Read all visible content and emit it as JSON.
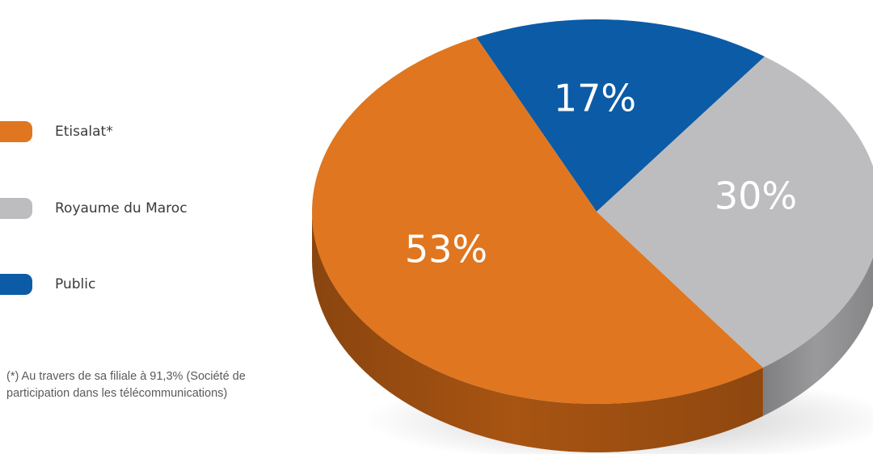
{
  "legend": {
    "items": [
      {
        "label": "Etisalat*",
        "color": "#E0761F"
      },
      {
        "label": "Royaume du Maroc",
        "color": "#BDBDBF"
      },
      {
        "label": "Public",
        "color": "#0C5BA6"
      }
    ]
  },
  "footnote": {
    "line1": "(*) Au travers de sa filiale à 91,3% (Société de",
    "line2": "participation dans les télécommunications)"
  },
  "chart_data": {
    "type": "pie",
    "title": "",
    "slices": [
      {
        "label": "Etisalat*",
        "value": 53,
        "display": "53%",
        "color": "#E0761F",
        "side_color": "#A85412",
        "text_color": "#ffffff"
      },
      {
        "label": "Royaume du Maroc",
        "value": 30,
        "display": "30%",
        "color": "#BDBDBF",
        "side_color": "#9A9A9C",
        "text_color": "#ffffff"
      },
      {
        "label": "Public",
        "value": 17,
        "display": "17%",
        "color": "#0C5BA6",
        "side_color": "#083F75",
        "text_color": "#ffffff"
      }
    ],
    "style": "3d",
    "legend_position": "left"
  }
}
